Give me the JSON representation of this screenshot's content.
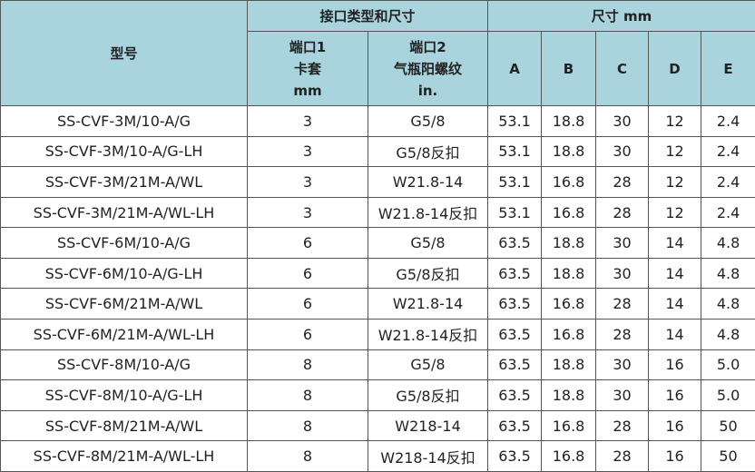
{
  "header": {
    "model": "型号",
    "port_group": "接口类型和尺寸",
    "port1": [
      "端口1",
      "卡套",
      "mm"
    ],
    "port2": [
      "端口2",
      "气瓶阳螺纹",
      "in."
    ],
    "size_group": "尺寸 mm",
    "size_cols": [
      "A",
      "B",
      "C",
      "D",
      "E"
    ]
  },
  "table": {
    "rows": [
      [
        "SS-CVF-3M/10-A/G",
        "3",
        "G5/8",
        "53.1",
        "18.8",
        "30",
        "12",
        "2.4"
      ],
      [
        "SS-CVF-3M/10-A/G-LH",
        "3",
        "G5/8反扣",
        "53.1",
        "18.8",
        "30",
        "12",
        "2.4"
      ],
      [
        "SS-CVF-3M/21M-A/WL",
        "3",
        "W21.8-14",
        "53.1",
        "16.8",
        "28",
        "12",
        "2.4"
      ],
      [
        "SS-CVF-3M/21M-A/WL-LH",
        "3",
        "W21.8-14反扣",
        "53.1",
        "16.8",
        "28",
        "12",
        "2.4"
      ],
      [
        "SS-CVF-6M/10-A/G",
        "6",
        "G5/8",
        "63.5",
        "18.8",
        "30",
        "14",
        "4.8"
      ],
      [
        "SS-CVF-6M/10-A/G-LH",
        "6",
        "G5/8反扣",
        "63.5",
        "18.8",
        "30",
        "14",
        "4.8"
      ],
      [
        "SS-CVF-6M/21M-A/WL",
        "6",
        "W21.8-14",
        "63.5",
        "16.8",
        "28",
        "14",
        "4.8"
      ],
      [
        "SS-CVF-6M/21M-A/WL-LH",
        "6",
        "W21.8-14反扣",
        "63.5",
        "16.8",
        "28",
        "14",
        "4.8"
      ],
      [
        "SS-CVF-8M/10-A/G",
        "8",
        "G5/8",
        "63.5",
        "18.8",
        "30",
        "16",
        "5.0"
      ],
      [
        "SS-CVF-8M/10-A/G-LH",
        "8",
        "G5/8反扣",
        "63.5",
        "18.8",
        "30",
        "16",
        "5.0"
      ],
      [
        "SS-CVF-8M/21M-A/WL",
        "8",
        "W218-14",
        "63.5",
        "16.8",
        "28",
        "16",
        "50"
      ],
      [
        "SS-CVF-8M/21M-A/WL-LH",
        "8",
        "W218-14反扣",
        "63.5",
        "16.8",
        "28",
        "16",
        "50"
      ]
    ]
  }
}
